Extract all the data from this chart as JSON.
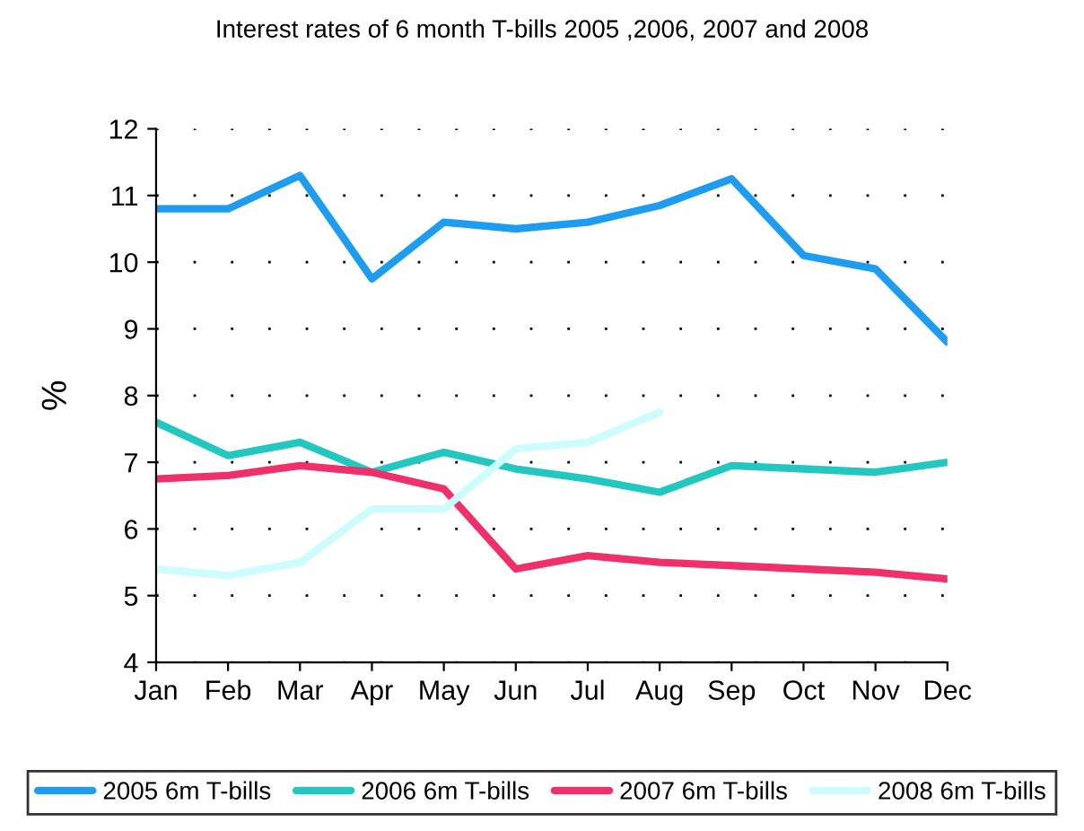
{
  "chart_data": {
    "type": "line",
    "title": "Interest rates of 6 month T-bills 2005 ,2006, 2007 and 2008",
    "ylabel": "%",
    "categories": [
      "Jan",
      "Feb",
      "Mar",
      "Apr",
      "May",
      "Jun",
      "Jul",
      "Aug",
      "Sep",
      "Oct",
      "Nov",
      "Dec"
    ],
    "series": [
      {
        "name": "2005 6m T-bills",
        "color": "#1e9cf0",
        "values": [
          10.8,
          10.8,
          11.3,
          9.75,
          10.6,
          10.5,
          10.6,
          10.85,
          11.25,
          10.1,
          9.9,
          8.8
        ]
      },
      {
        "name": "2006 6m T-bills",
        "color": "#22c8c0",
        "values": [
          7.6,
          7.1,
          7.3,
          6.85,
          7.15,
          6.9,
          6.75,
          6.55,
          6.95,
          6.9,
          6.85,
          7.0
        ]
      },
      {
        "name": "2007 6m T-bills",
        "color": "#f0306a",
        "values": [
          6.75,
          6.8,
          6.95,
          6.85,
          6.6,
          5.4,
          5.6,
          5.5,
          5.45,
          5.4,
          5.35,
          5.25
        ]
      },
      {
        "name": "2008 6m T-bills",
        "color": "#ccfcfc",
        "values": [
          5.4,
          5.3,
          5.5,
          6.3,
          6.3,
          7.2,
          7.3,
          7.75,
          null,
          null,
          null,
          null
        ]
      }
    ],
    "ylim": [
      4,
      12
    ],
    "yticks": [
      4,
      5,
      6,
      7,
      8,
      9,
      10,
      11,
      12
    ],
    "grid": "y",
    "legend": "bottom",
    "marker": "none",
    "line_style": "solid"
  }
}
